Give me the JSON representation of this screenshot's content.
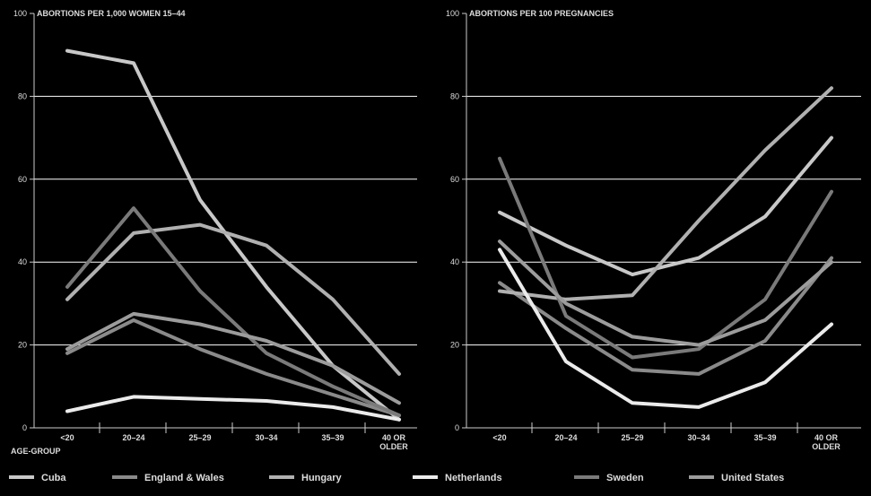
{
  "chart_data": [
    {
      "type": "line",
      "title": "ABORTIONS PER 1,000 WOMEN 15–44",
      "xlabel": "AGE-GROUP",
      "ylabel": "",
      "ylim": [
        0,
        100
      ],
      "yticks": [
        "0",
        "20",
        "40",
        "60",
        "80",
        "100"
      ],
      "grid": true,
      "categories": [
        "<20",
        "20–24",
        "25–29",
        "30–34",
        "35–39",
        "40 OR OLDER"
      ],
      "series": [
        {
          "name": "Cuba",
          "values": [
            91,
            88,
            55,
            34,
            15,
            2
          ]
        },
        {
          "name": "England & Wales",
          "values": [
            18,
            26,
            19,
            13,
            8,
            3
          ]
        },
        {
          "name": "Hungary",
          "values": [
            31,
            47,
            49,
            44,
            31,
            13
          ]
        },
        {
          "name": "Netherlands",
          "values": [
            4,
            7.5,
            7,
            6.5,
            5,
            2
          ]
        },
        {
          "name": "Sweden",
          "values": [
            34,
            53,
            33,
            18,
            10,
            3
          ]
        },
        {
          "name": "United States",
          "values": [
            19,
            27.5,
            25,
            21,
            15,
            6
          ]
        }
      ]
    },
    {
      "type": "line",
      "title": "ABORTIONS PER 100 PREGNANCIES",
      "xlabel": "",
      "ylabel": "",
      "ylim": [
        0,
        100
      ],
      "yticks": [
        "0",
        "20",
        "40",
        "60",
        "80",
        "100"
      ],
      "grid": true,
      "categories": [
        "<20",
        "20–24",
        "25–29",
        "30–34",
        "35–39",
        "40 OR OLDER"
      ],
      "series": [
        {
          "name": "Cuba",
          "values": [
            52,
            44,
            37,
            41,
            51,
            70
          ]
        },
        {
          "name": "England & Wales",
          "values": [
            35,
            24,
            14,
            13,
            21,
            41
          ]
        },
        {
          "name": "Hungary",
          "values": [
            33,
            31,
            32,
            50,
            67,
            82
          ]
        },
        {
          "name": "Netherlands",
          "values": [
            43,
            16,
            6,
            5,
            11,
            25
          ]
        },
        {
          "name": "Sweden",
          "values": [
            65,
            27,
            17,
            19,
            31,
            57
          ]
        },
        {
          "name": "United States",
          "values": [
            45,
            30,
            22,
            20,
            26,
            40
          ]
        }
      ]
    }
  ],
  "series_colors": [
    "#c8c8c8",
    "#8a8a8a",
    "#b0b0b0",
    "#ebebeb",
    "#7a7a7a",
    "#9c9c9c"
  ],
  "grid_color": "#ffffff",
  "text_color": "#dddddd"
}
